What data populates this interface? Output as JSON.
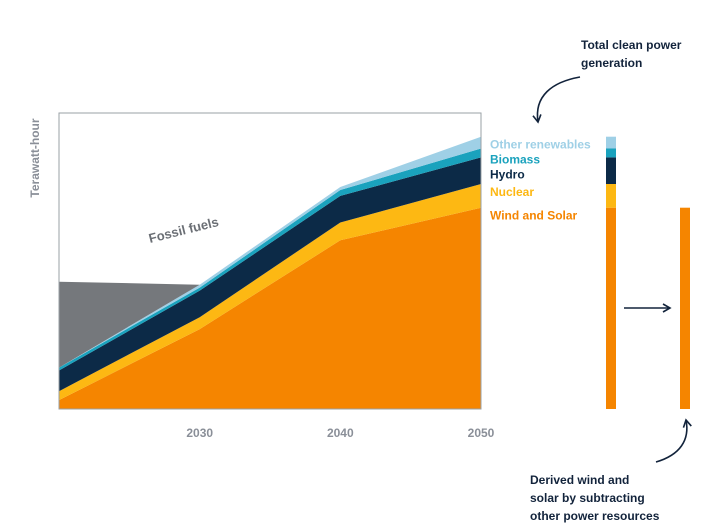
{
  "chart_data": {
    "type": "area",
    "stacked": true,
    "xlabel": "",
    "ylabel": "Terawatt-hour",
    "x": [
      2020,
      2030,
      2040,
      2050
    ],
    "x_ticks": [
      "2030",
      "2040",
      "2050"
    ],
    "xlim": [
      2020,
      2050
    ],
    "ylim": [
      0,
      100
    ],
    "grid": false,
    "legend_position": "right",
    "series": [
      {
        "name": "Wind and Solar",
        "color": "#f58500",
        "values": [
          3,
          27,
          57,
          68
        ]
      },
      {
        "name": "Nuclear",
        "color": "#fdb813",
        "values": [
          3,
          4,
          6,
          8
        ]
      },
      {
        "name": "Hydro",
        "color": "#0c2a47",
        "values": [
          7,
          9,
          9,
          9
        ]
      },
      {
        "name": "Biomass",
        "color": "#1aa2bd",
        "values": [
          1,
          1,
          2,
          3
        ]
      },
      {
        "name": "Other renewables",
        "color": "#9fd0e6",
        "values": [
          0,
          1,
          1,
          4
        ]
      },
      {
        "name": "Fossil fuels",
        "color": "#75787c",
        "values": [
          29,
          0,
          0,
          0
        ]
      }
    ],
    "fossil_label": "Fossil fuels",
    "bar_total": {
      "label": "Total clean power generation",
      "segments": [
        68,
        8,
        9,
        3,
        4
      ]
    },
    "bar_derived": {
      "label": "Derived wind and solar by subtracting other power resources",
      "value": 68
    }
  },
  "annotations": {
    "total_line1": "Total clean power",
    "total_line2": "generation",
    "derived_line1": "Derived wind and",
    "derived_line2": "solar by subtracting",
    "derived_line3": "other power resources"
  }
}
